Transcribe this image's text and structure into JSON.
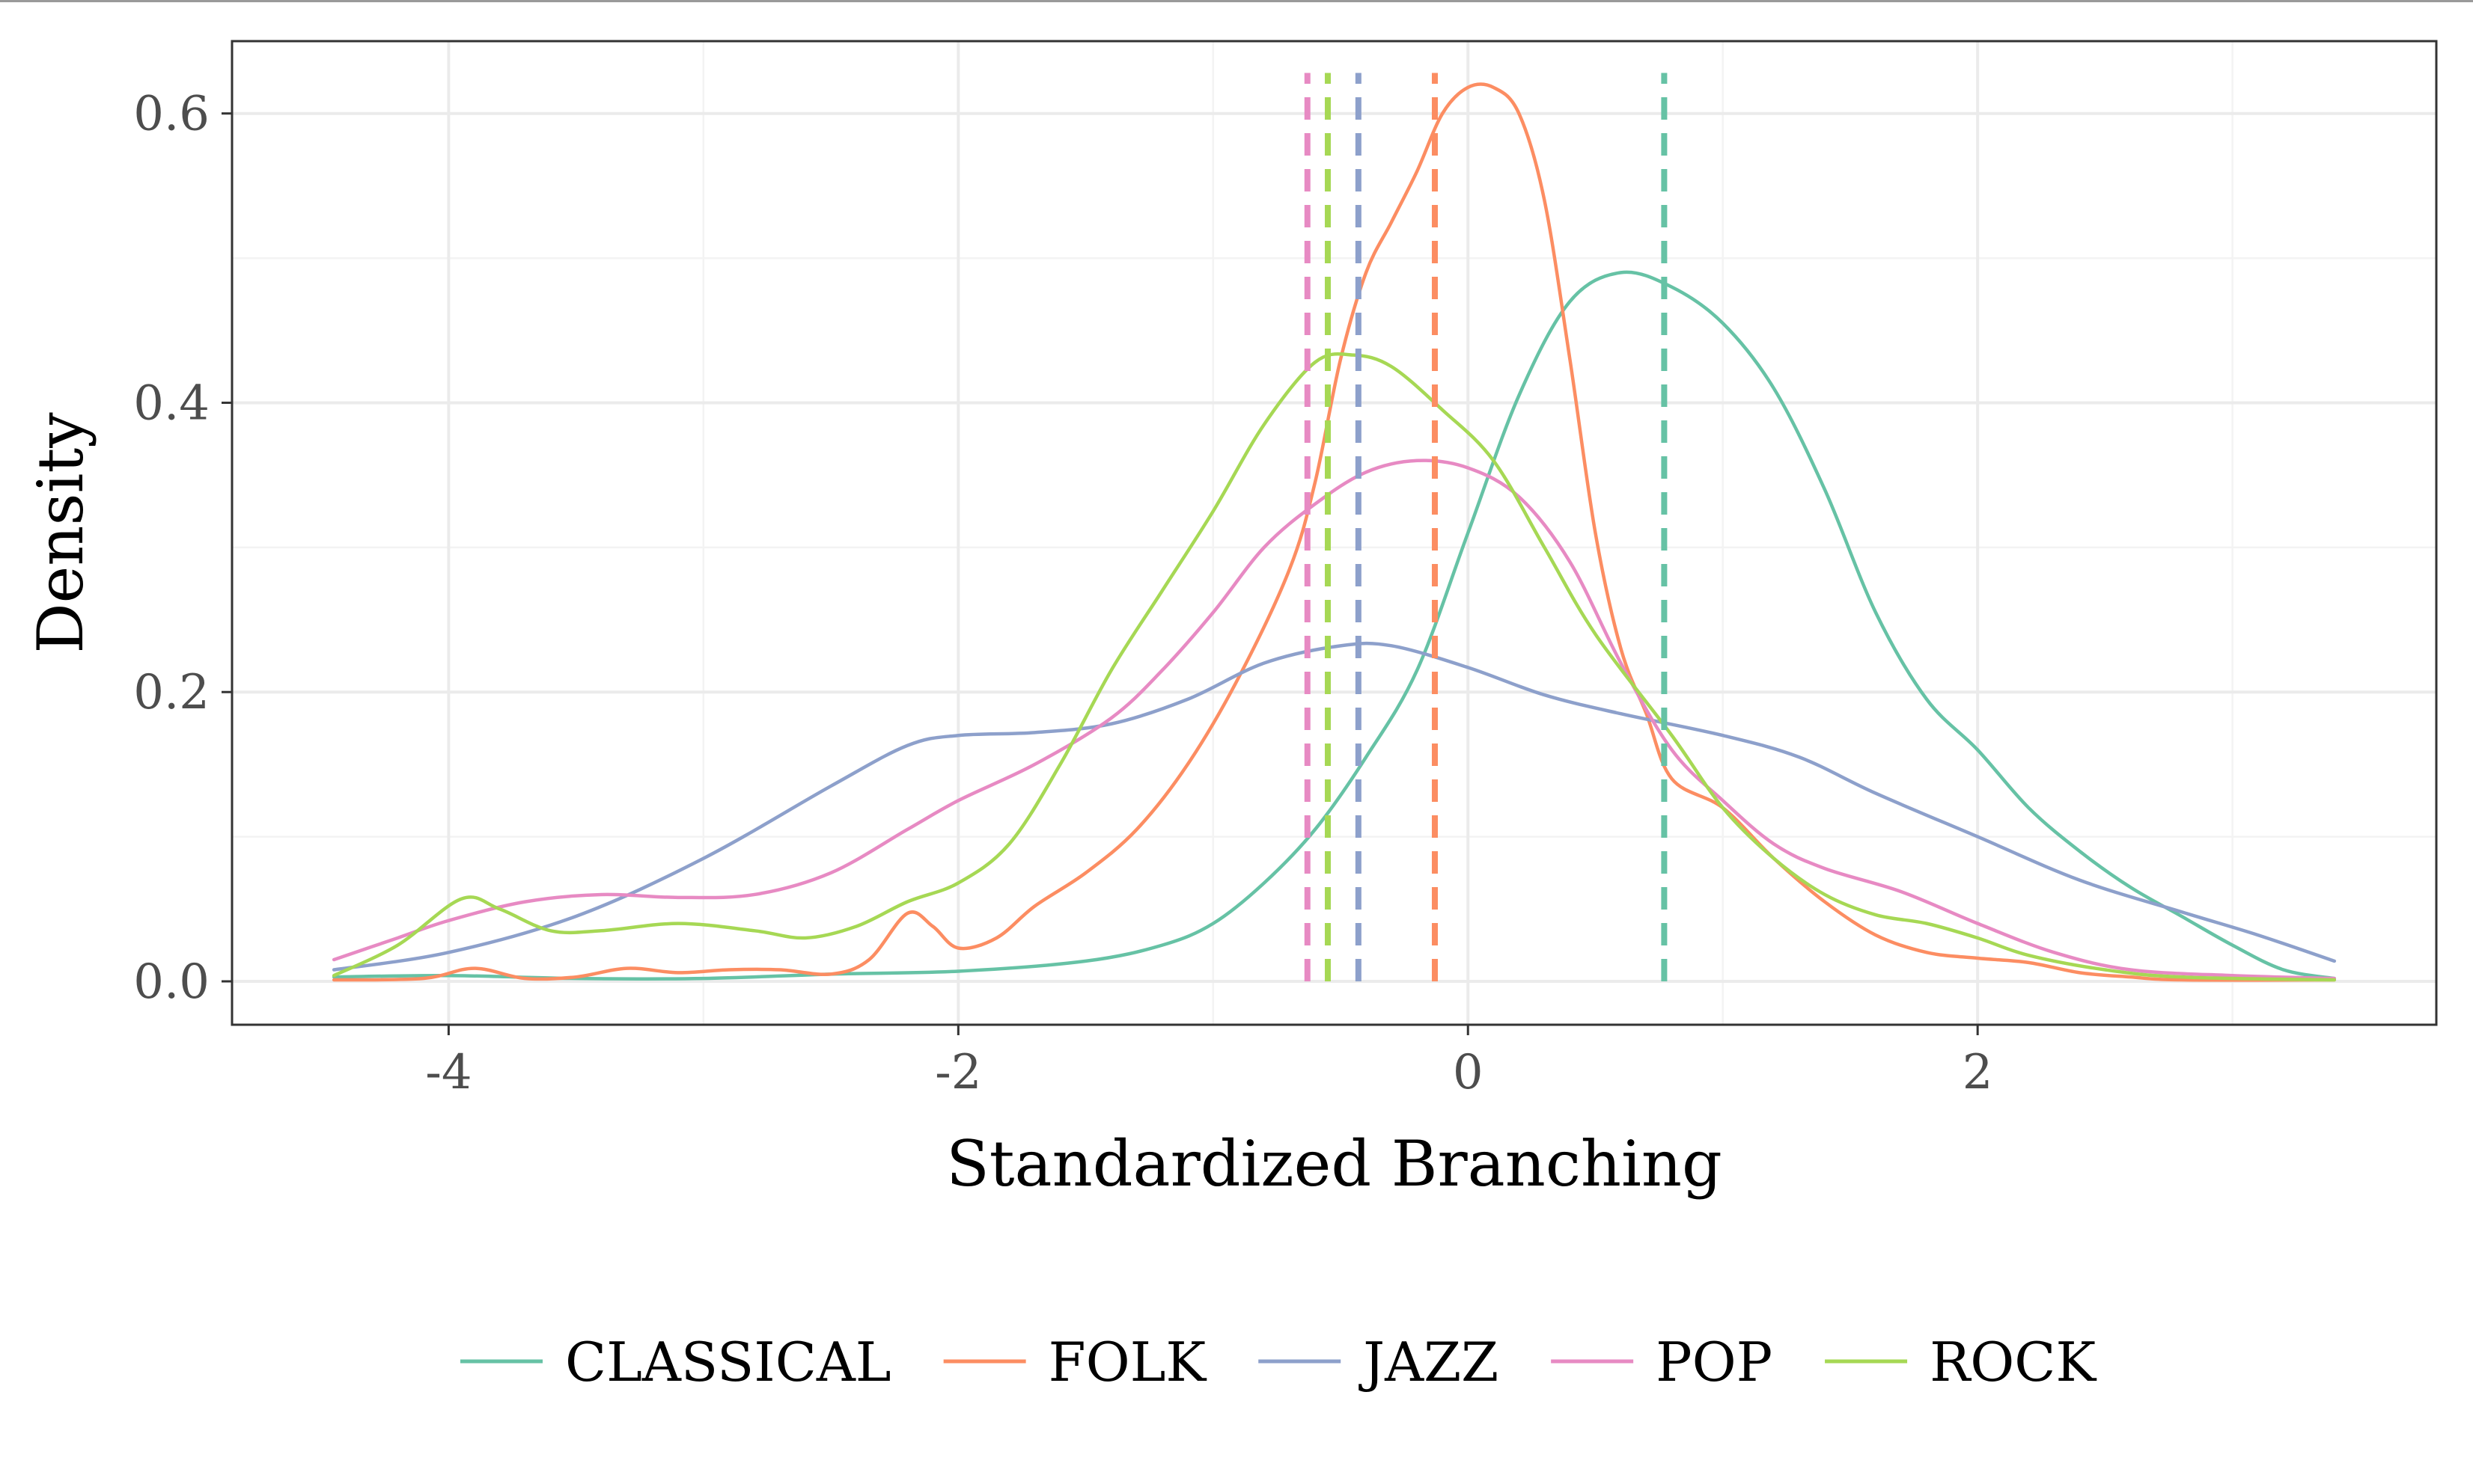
{
  "chart_data": {
    "type": "line",
    "subtype": "density",
    "title": "",
    "xlabel": "Standardized Branching",
    "ylabel": "Density",
    "xlim": [
      -4.85,
      3.8
    ],
    "ylim": [
      -0.03,
      0.65
    ],
    "x_ticks": [
      -4,
      -2,
      0,
      2
    ],
    "x_tick_labels": [
      "-4",
      "-2",
      "0",
      "2"
    ],
    "y_ticks": [
      0.0,
      0.2,
      0.4,
      0.6
    ],
    "y_tick_labels": [
      "0.0",
      "0.2",
      "0.4",
      "0.6"
    ],
    "grid": true,
    "legend_position": "bottom",
    "series": [
      {
        "name": "CLASSICAL",
        "color": "#66c2a5",
        "mean": 0.77,
        "points": [
          [
            -4.45,
            0.003
          ],
          [
            -4.0,
            0.004
          ],
          [
            -3.5,
            0.002
          ],
          [
            -3.0,
            0.002
          ],
          [
            -2.5,
            0.005
          ],
          [
            -2.0,
            0.007
          ],
          [
            -1.5,
            0.014
          ],
          [
            -1.2,
            0.025
          ],
          [
            -1.0,
            0.04
          ],
          [
            -0.8,
            0.068
          ],
          [
            -0.6,
            0.105
          ],
          [
            -0.4,
            0.155
          ],
          [
            -0.2,
            0.215
          ],
          [
            0.0,
            0.31
          ],
          [
            0.2,
            0.405
          ],
          [
            0.4,
            0.47
          ],
          [
            0.6,
            0.49
          ],
          [
            0.8,
            0.48
          ],
          [
            1.0,
            0.455
          ],
          [
            1.2,
            0.41
          ],
          [
            1.4,
            0.34
          ],
          [
            1.6,
            0.255
          ],
          [
            1.8,
            0.195
          ],
          [
            2.0,
            0.16
          ],
          [
            2.2,
            0.12
          ],
          [
            2.4,
            0.09
          ],
          [
            2.6,
            0.065
          ],
          [
            2.8,
            0.045
          ],
          [
            3.0,
            0.025
          ],
          [
            3.2,
            0.008
          ],
          [
            3.4,
            0.002
          ]
        ]
      },
      {
        "name": "FOLK",
        "color": "#fc8d62",
        "mean": -0.13,
        "points": [
          [
            -4.45,
            0.001
          ],
          [
            -4.1,
            0.002
          ],
          [
            -3.9,
            0.009
          ],
          [
            -3.7,
            0.002
          ],
          [
            -3.5,
            0.003
          ],
          [
            -3.3,
            0.009
          ],
          [
            -3.1,
            0.006
          ],
          [
            -2.9,
            0.008
          ],
          [
            -2.7,
            0.008
          ],
          [
            -2.5,
            0.005
          ],
          [
            -2.35,
            0.015
          ],
          [
            -2.2,
            0.047
          ],
          [
            -2.1,
            0.038
          ],
          [
            -2.0,
            0.023
          ],
          [
            -1.85,
            0.03
          ],
          [
            -1.7,
            0.052
          ],
          [
            -1.5,
            0.075
          ],
          [
            -1.3,
            0.105
          ],
          [
            -1.1,
            0.15
          ],
          [
            -0.9,
            0.21
          ],
          [
            -0.7,
            0.285
          ],
          [
            -0.6,
            0.345
          ],
          [
            -0.5,
            0.43
          ],
          [
            -0.4,
            0.49
          ],
          [
            -0.3,
            0.525
          ],
          [
            -0.2,
            0.56
          ],
          [
            -0.1,
            0.6
          ],
          [
            0.0,
            0.618
          ],
          [
            0.1,
            0.618
          ],
          [
            0.2,
            0.6
          ],
          [
            0.3,
            0.54
          ],
          [
            0.4,
            0.43
          ],
          [
            0.5,
            0.31
          ],
          [
            0.6,
            0.23
          ],
          [
            0.7,
            0.185
          ],
          [
            0.8,
            0.14
          ],
          [
            1.0,
            0.12
          ],
          [
            1.2,
            0.085
          ],
          [
            1.4,
            0.055
          ],
          [
            1.6,
            0.032
          ],
          [
            1.8,
            0.02
          ],
          [
            2.0,
            0.016
          ],
          [
            2.2,
            0.013
          ],
          [
            2.4,
            0.006
          ],
          [
            2.6,
            0.003
          ],
          [
            2.8,
            0.001
          ],
          [
            3.4,
            0.001
          ]
        ]
      },
      {
        "name": "JAZZ",
        "color": "#8da0cb",
        "mean": -0.43,
        "points": [
          [
            -4.45,
            0.008
          ],
          [
            -4.0,
            0.02
          ],
          [
            -3.5,
            0.045
          ],
          [
            -3.0,
            0.085
          ],
          [
            -2.5,
            0.135
          ],
          [
            -2.2,
            0.163
          ],
          [
            -2.0,
            0.17
          ],
          [
            -1.7,
            0.172
          ],
          [
            -1.4,
            0.178
          ],
          [
            -1.1,
            0.195
          ],
          [
            -0.8,
            0.22
          ],
          [
            -0.5,
            0.232
          ],
          [
            -0.3,
            0.232
          ],
          [
            0.0,
            0.217
          ],
          [
            0.3,
            0.198
          ],
          [
            0.6,
            0.185
          ],
          [
            1.0,
            0.17
          ],
          [
            1.3,
            0.155
          ],
          [
            1.6,
            0.13
          ],
          [
            2.0,
            0.1
          ],
          [
            2.4,
            0.07
          ],
          [
            2.8,
            0.048
          ],
          [
            3.1,
            0.032
          ],
          [
            3.4,
            0.014
          ]
        ]
      },
      {
        "name": "POP",
        "color": "#e78ac3",
        "mean": -0.63,
        "points": [
          [
            -4.45,
            0.015
          ],
          [
            -4.2,
            0.03
          ],
          [
            -4.0,
            0.042
          ],
          [
            -3.7,
            0.055
          ],
          [
            -3.4,
            0.06
          ],
          [
            -3.1,
            0.058
          ],
          [
            -2.8,
            0.06
          ],
          [
            -2.5,
            0.075
          ],
          [
            -2.2,
            0.105
          ],
          [
            -2.0,
            0.125
          ],
          [
            -1.7,
            0.15
          ],
          [
            -1.4,
            0.182
          ],
          [
            -1.2,
            0.215
          ],
          [
            -1.0,
            0.255
          ],
          [
            -0.8,
            0.3
          ],
          [
            -0.6,
            0.33
          ],
          [
            -0.4,
            0.352
          ],
          [
            -0.2,
            0.36
          ],
          [
            0.0,
            0.355
          ],
          [
            0.2,
            0.335
          ],
          [
            0.4,
            0.29
          ],
          [
            0.6,
            0.22
          ],
          [
            0.8,
            0.16
          ],
          [
            1.0,
            0.125
          ],
          [
            1.2,
            0.095
          ],
          [
            1.4,
            0.078
          ],
          [
            1.7,
            0.062
          ],
          [
            2.0,
            0.04
          ],
          [
            2.3,
            0.02
          ],
          [
            2.6,
            0.008
          ],
          [
            3.0,
            0.004
          ],
          [
            3.4,
            0.002
          ]
        ]
      },
      {
        "name": "ROCK",
        "color": "#a6d854",
        "mean": -0.55,
        "points": [
          [
            -4.45,
            0.004
          ],
          [
            -4.2,
            0.025
          ],
          [
            -3.95,
            0.057
          ],
          [
            -3.8,
            0.05
          ],
          [
            -3.6,
            0.035
          ],
          [
            -3.4,
            0.035
          ],
          [
            -3.1,
            0.04
          ],
          [
            -2.8,
            0.035
          ],
          [
            -2.6,
            0.03
          ],
          [
            -2.4,
            0.038
          ],
          [
            -2.2,
            0.055
          ],
          [
            -2.0,
            0.068
          ],
          [
            -1.8,
            0.095
          ],
          [
            -1.6,
            0.15
          ],
          [
            -1.4,
            0.215
          ],
          [
            -1.2,
            0.27
          ],
          [
            -1.0,
            0.325
          ],
          [
            -0.8,
            0.385
          ],
          [
            -0.6,
            0.428
          ],
          [
            -0.45,
            0.433
          ],
          [
            -0.3,
            0.425
          ],
          [
            -0.1,
            0.395
          ],
          [
            0.1,
            0.36
          ],
          [
            0.3,
            0.3
          ],
          [
            0.5,
            0.24
          ],
          [
            0.8,
            0.17
          ],
          [
            1.0,
            0.12
          ],
          [
            1.2,
            0.085
          ],
          [
            1.4,
            0.06
          ],
          [
            1.6,
            0.046
          ],
          [
            1.8,
            0.04
          ],
          [
            2.0,
            0.03
          ],
          [
            2.2,
            0.018
          ],
          [
            2.5,
            0.008
          ],
          [
            2.8,
            0.003
          ],
          [
            3.4,
            0.001
          ]
        ]
      }
    ]
  }
}
